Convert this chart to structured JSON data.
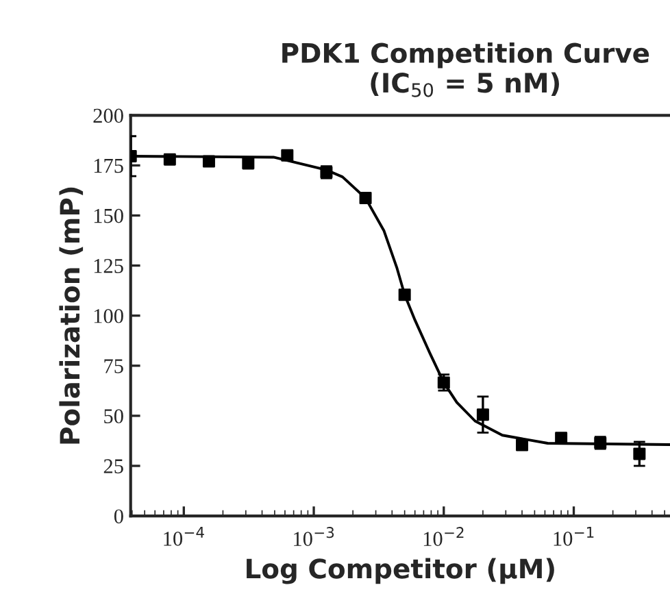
{
  "chart_data": {
    "type": "scatter",
    "title": "PDK1 Competition Curve\n(IC$_{50}$ = 5 nM)",
    "xlabel": "Log Competitor (μM)",
    "ylabel": "Polarization (mP)",
    "log": "x",
    "grid": false,
    "legend": false,
    "xlim": [
      3.9e-05,
      0.55
    ],
    "xticks": [
      {
        "value": 0.0001,
        "label": "10$^{−4}$"
      },
      {
        "value": 0.001,
        "label": "10$^{−3}$"
      },
      {
        "value": 0.01,
        "label": "10$^{−2}$"
      },
      {
        "value": 0.1,
        "label": "10$^{−1}$"
      }
    ],
    "ylim": [
      0,
      200
    ],
    "yticks": [
      0,
      25,
      50,
      75,
      100,
      125,
      150,
      175,
      200
    ],
    "series": [
      {
        "color": "#000000",
        "marker": "square",
        "x": [
          3.9e-05,
          7.8e-05,
          0.000156,
          0.000313,
          0.000625,
          0.00125,
          0.0025,
          0.005,
          0.01,
          0.02,
          0.04,
          0.08,
          0.16,
          0.32
        ],
        "values": [
          179.6,
          178,
          177,
          176,
          180,
          171.6,
          158.7,
          110.4,
          66.6,
          50.6,
          35.4,
          38.9,
          36.5,
          31
        ],
        "errors": [
          10,
          null,
          null,
          null,
          null,
          3,
          null,
          null,
          4,
          9,
          null,
          null,
          3,
          6
        ]
      },
      {
        "type": "line",
        "color": "#000000",
        "marker": "none",
        "line_style": "solid",
        "x": [
          3.9e-05,
          0.00049,
          0.00124,
          0.00166,
          0.0025,
          0.00347,
          0.00437,
          0.005,
          0.006,
          0.0078,
          0.01,
          0.0126,
          0.0174,
          0.0282,
          0.063,
          0.55
        ],
        "values": [
          179.6,
          179.1,
          172.8,
          169.3,
          158.7,
          142.3,
          123.6,
          110.4,
          97.8,
          81.4,
          66.6,
          56.7,
          47.4,
          40.3,
          36.3,
          35.6
        ]
      }
    ]
  }
}
